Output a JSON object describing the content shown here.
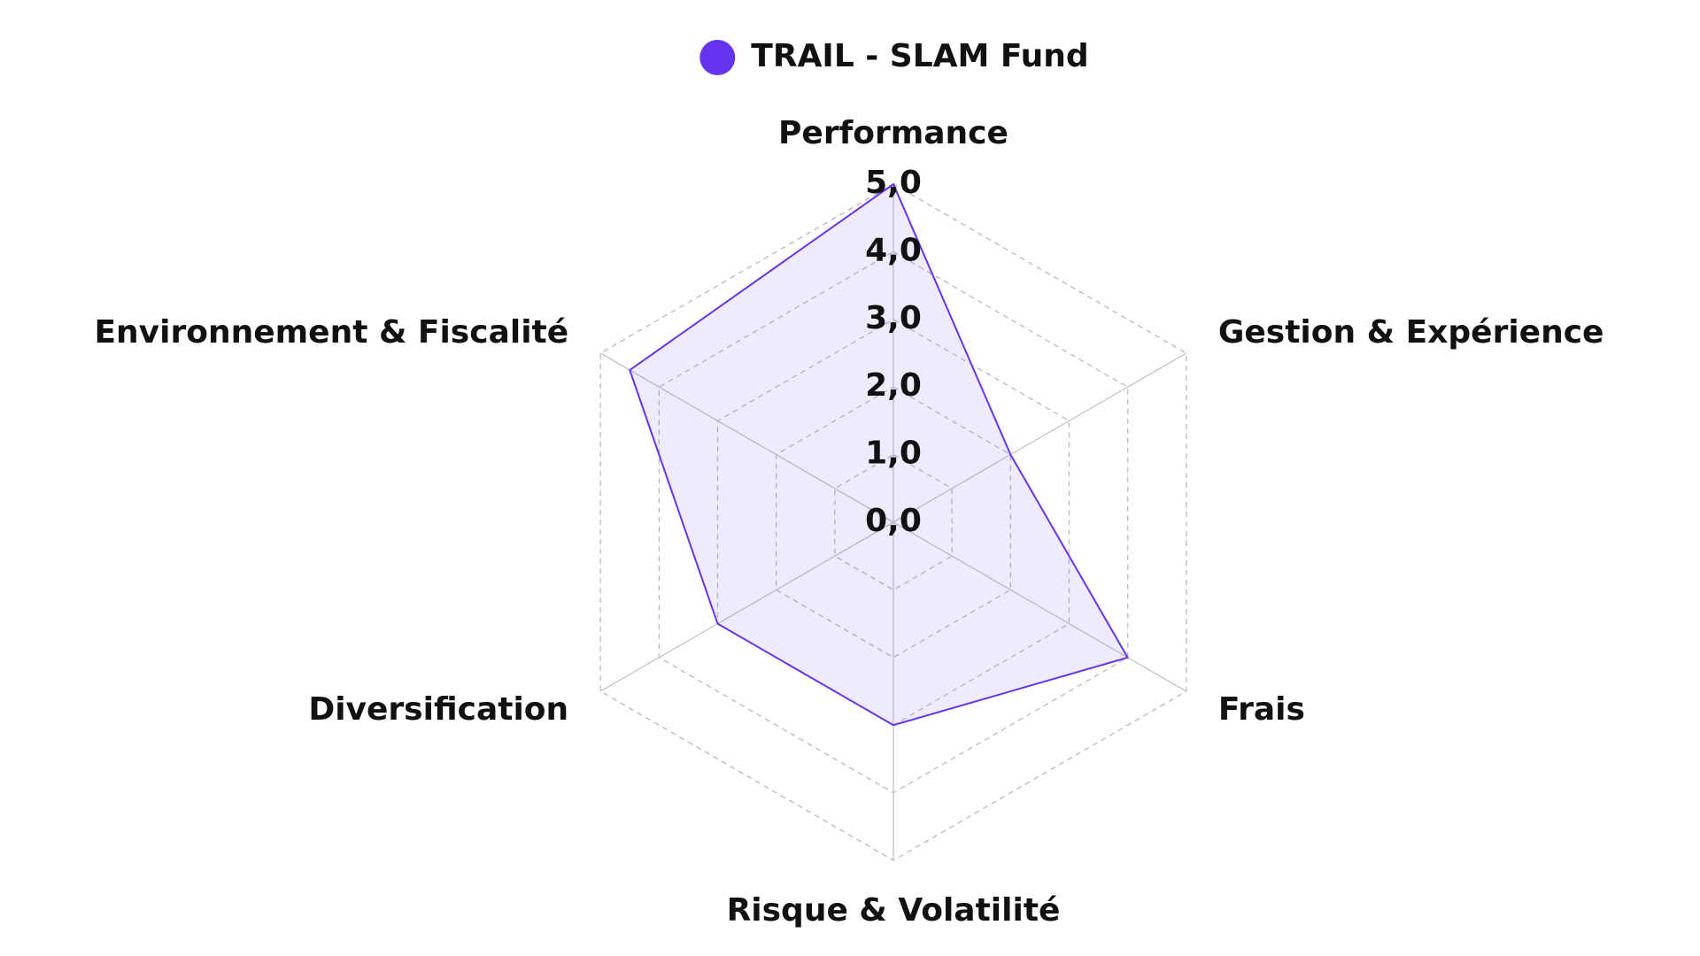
{
  "chart_data": {
    "type": "radar",
    "categories": [
      "Performance",
      "Gestion & Expérience",
      "Frais",
      "Risque & Volatilité",
      "Diversification",
      "Environnement & Fiscalité"
    ],
    "series": [
      {
        "name": "TRAIL - SLAM Fund",
        "color": "#6633ee",
        "values": [
          5,
          2,
          4,
          3,
          3,
          4.5
        ]
      }
    ],
    "ylim": [
      0,
      5
    ],
    "yticks": [
      {
        "value": 0,
        "label": "0,0"
      },
      {
        "value": 1,
        "label": "1,0"
      },
      {
        "value": 2,
        "label": "2,0"
      },
      {
        "value": 3,
        "label": "3,0"
      },
      {
        "value": 4,
        "label": "4,0"
      },
      {
        "value": 5,
        "label": "5,0"
      }
    ],
    "grid": true,
    "legend": "top"
  }
}
